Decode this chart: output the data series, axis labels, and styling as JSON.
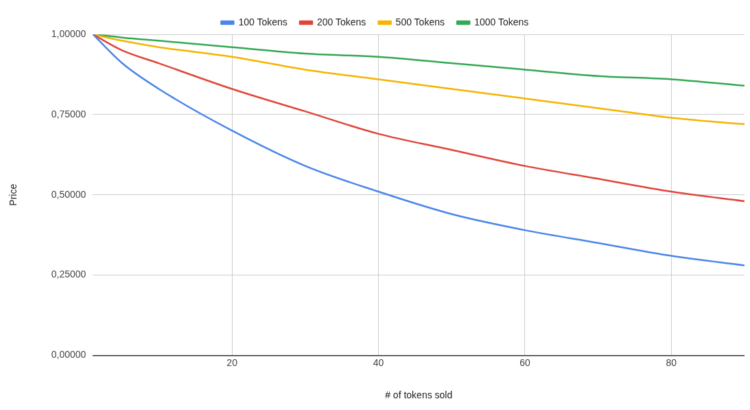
{
  "chart_data": {
    "type": "line",
    "xlabel": "# of tokens sold",
    "ylabel": "Price",
    "x": [
      1,
      5,
      10,
      20,
      30,
      40,
      50,
      60,
      70,
      80,
      90
    ],
    "series": [
      {
        "name": "100 Tokens",
        "color": "#4a86e8",
        "values": [
          1.0,
          0.91,
          0.83,
          0.7,
          0.59,
          0.51,
          0.44,
          0.39,
          0.35,
          0.31,
          0.28
        ]
      },
      {
        "name": "200 Tokens",
        "color": "#e0453a",
        "values": [
          1.0,
          0.95,
          0.91,
          0.83,
          0.76,
          0.69,
          0.64,
          0.59,
          0.55,
          0.51,
          0.48
        ]
      },
      {
        "name": "500 Tokens",
        "color": "#f4b400",
        "values": [
          1.0,
          0.98,
          0.96,
          0.93,
          0.89,
          0.86,
          0.83,
          0.8,
          0.77,
          0.74,
          0.72
        ]
      },
      {
        "name": "1000 Tokens",
        "color": "#34a853",
        "values": [
          1.0,
          0.99,
          0.98,
          0.96,
          0.94,
          0.93,
          0.91,
          0.89,
          0.87,
          0.86,
          0.84
        ]
      }
    ],
    "xlim": [
      1,
      90
    ],
    "xticks": [
      20,
      40,
      60,
      80
    ],
    "ylim": [
      0,
      1
    ],
    "yticks": [
      {
        "value": 0,
        "label": "0,00000"
      },
      {
        "value": 0.25,
        "label": "0,25000"
      },
      {
        "value": 0.5,
        "label": "0,50000"
      },
      {
        "value": 0.75,
        "label": "0,75000"
      },
      {
        "value": 1,
        "label": "1,00000"
      }
    ],
    "grid": true,
    "legend": "top",
    "marker": "none",
    "line_style": "solid"
  }
}
